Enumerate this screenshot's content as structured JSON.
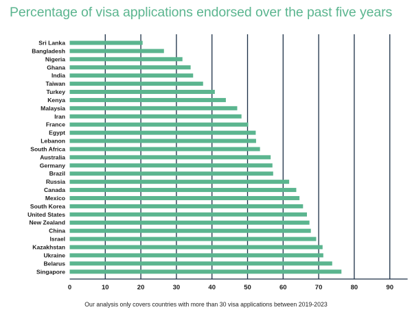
{
  "title": "Percentage of visa applications endorsed over the past five years",
  "footnote": "Our analysis only covers countries with more than 30 visa applications between 2019-2023",
  "colors": {
    "bar": "#5bb58f",
    "title": "#5bb58f",
    "grid": "#1a2e45",
    "text": "#1a1a1a"
  },
  "chart_data": {
    "type": "bar",
    "orientation": "horizontal",
    "title": "Percentage of visa applications endorsed over the past five years",
    "xlabel": "",
    "ylabel": "",
    "xlim": [
      0,
      95
    ],
    "xticks": [
      0,
      10,
      20,
      30,
      40,
      50,
      60,
      70,
      80,
      90
    ],
    "grid": true,
    "categories": [
      "Sri Lanka",
      "Bangladesh",
      "Nigeria",
      "Ghana",
      "India",
      "Taiwan",
      "Turkey",
      "Kenya",
      "Malaysia",
      "Iran",
      "France",
      "Egypt",
      "Lebanon",
      "South Africa",
      "Australia",
      "Germany",
      "Brazil",
      "Russia",
      "Canada",
      "Mexico",
      "South Korea",
      "United States",
      "New Zealand",
      "China",
      "Israel",
      "Kazakhstan",
      "Ukraine",
      "Belarus",
      "Singapore"
    ],
    "values": [
      20.5,
      26.5,
      31.7,
      34.0,
      34.7,
      37.5,
      40.8,
      43.9,
      47.1,
      48.3,
      50.2,
      52.3,
      52.4,
      53.5,
      56.5,
      57.0,
      57.2,
      61.7,
      63.7,
      64.6,
      65.6,
      66.7,
      67.4,
      67.8,
      69.3,
      71.1,
      71.3,
      73.8,
      76.4
    ]
  }
}
